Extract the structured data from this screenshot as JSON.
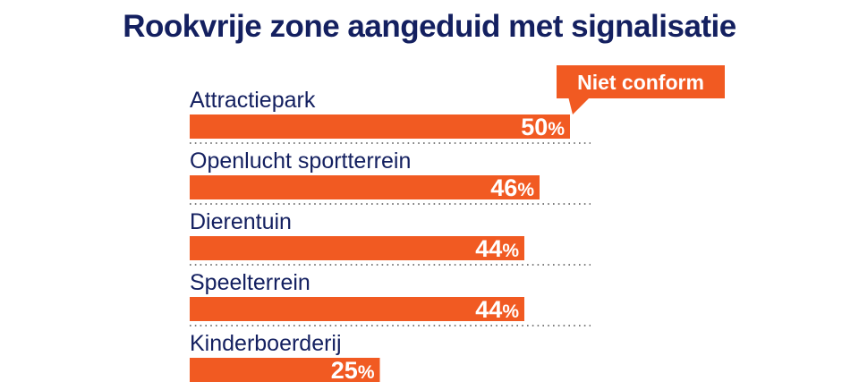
{
  "chart_data": {
    "type": "bar",
    "orientation": "horizontal",
    "title": "Rookvrije zone aangeduid met signalisatie",
    "categories": [
      "Attractiepark",
      "Openlucht sportterrein",
      "Dierentuin",
      "Speelterrein",
      "Kinderboerderij"
    ],
    "values": [
      50,
      46,
      44,
      44,
      25
    ],
    "unit": "%",
    "annotation": "Niet conform",
    "colors": {
      "bar": "#f15a22",
      "text": "#142060",
      "dots": "#555555"
    }
  }
}
